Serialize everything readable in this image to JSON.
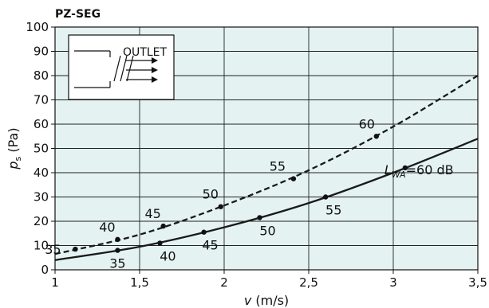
{
  "chart_data": {
    "type": "line",
    "title": "PZ-SEG",
    "xlabel_var": "v",
    "xlabel_unit": " (m/s)",
    "ylabel_var": "p",
    "ylabel_sub": "s",
    "ylabel_unit": " (Pa)",
    "xlim": [
      1,
      3.5
    ],
    "ylim": [
      0,
      100
    ],
    "x_ticks": [
      1,
      1.5,
      2,
      2.5,
      3,
      3.5
    ],
    "x_tick_labels": [
      "1",
      "1,5",
      "2",
      "2,5",
      "3",
      "3,5"
    ],
    "y_ticks": [
      0,
      10,
      20,
      30,
      40,
      50,
      60,
      70,
      80,
      90,
      100
    ],
    "y_tick_labels": [
      "0",
      "10",
      "20",
      "30",
      "40",
      "50",
      "60",
      "70",
      "80",
      "90",
      "100"
    ],
    "grid": true,
    "background_color": "#e4f3f1",
    "line_color": "#1a1a1a",
    "series": [
      {
        "style": "solid",
        "curve_x": [
          1,
          1.5,
          2,
          2.5,
          3,
          3.5
        ],
        "curve_y": [
          4,
          9.5,
          17.5,
          27.5,
          40,
          54
        ],
        "points": [
          {
            "x": 1.37,
            "y": 8,
            "label": "35"
          },
          {
            "x": 1.62,
            "y": 11,
            "label": "40"
          },
          {
            "x": 1.88,
            "y": 15.5,
            "label": "45"
          },
          {
            "x": 2.21,
            "y": 21.5,
            "label": "50"
          },
          {
            "x": 2.6,
            "y": 30,
            "label": "55"
          },
          {
            "x": 3.07,
            "y": 42,
            "label": "60"
          }
        ],
        "end_label_main": "L",
        "end_label_sub": "WA",
        "end_label_tail": "=60 dB"
      },
      {
        "style": "dashed",
        "curve_x": [
          1,
          1.5,
          2,
          2.5,
          3,
          3.5
        ],
        "curve_y": [
          6.5,
          14.5,
          26.5,
          41,
          59,
          80
        ],
        "points": [
          {
            "x": 1.12,
            "y": 8.5,
            "label": "35"
          },
          {
            "x": 1.37,
            "y": 12.5,
            "label": "40"
          },
          {
            "x": 1.64,
            "y": 18,
            "label": "45"
          },
          {
            "x": 1.98,
            "y": 26,
            "label": "50"
          },
          {
            "x": 2.41,
            "y": 37.5,
            "label": "55"
          },
          {
            "x": 2.9,
            "y": 55,
            "label": "60"
          }
        ]
      }
    ]
  },
  "inset": {
    "label": "OUTLET",
    "icon": "duct-outlet-arrows-icon"
  }
}
